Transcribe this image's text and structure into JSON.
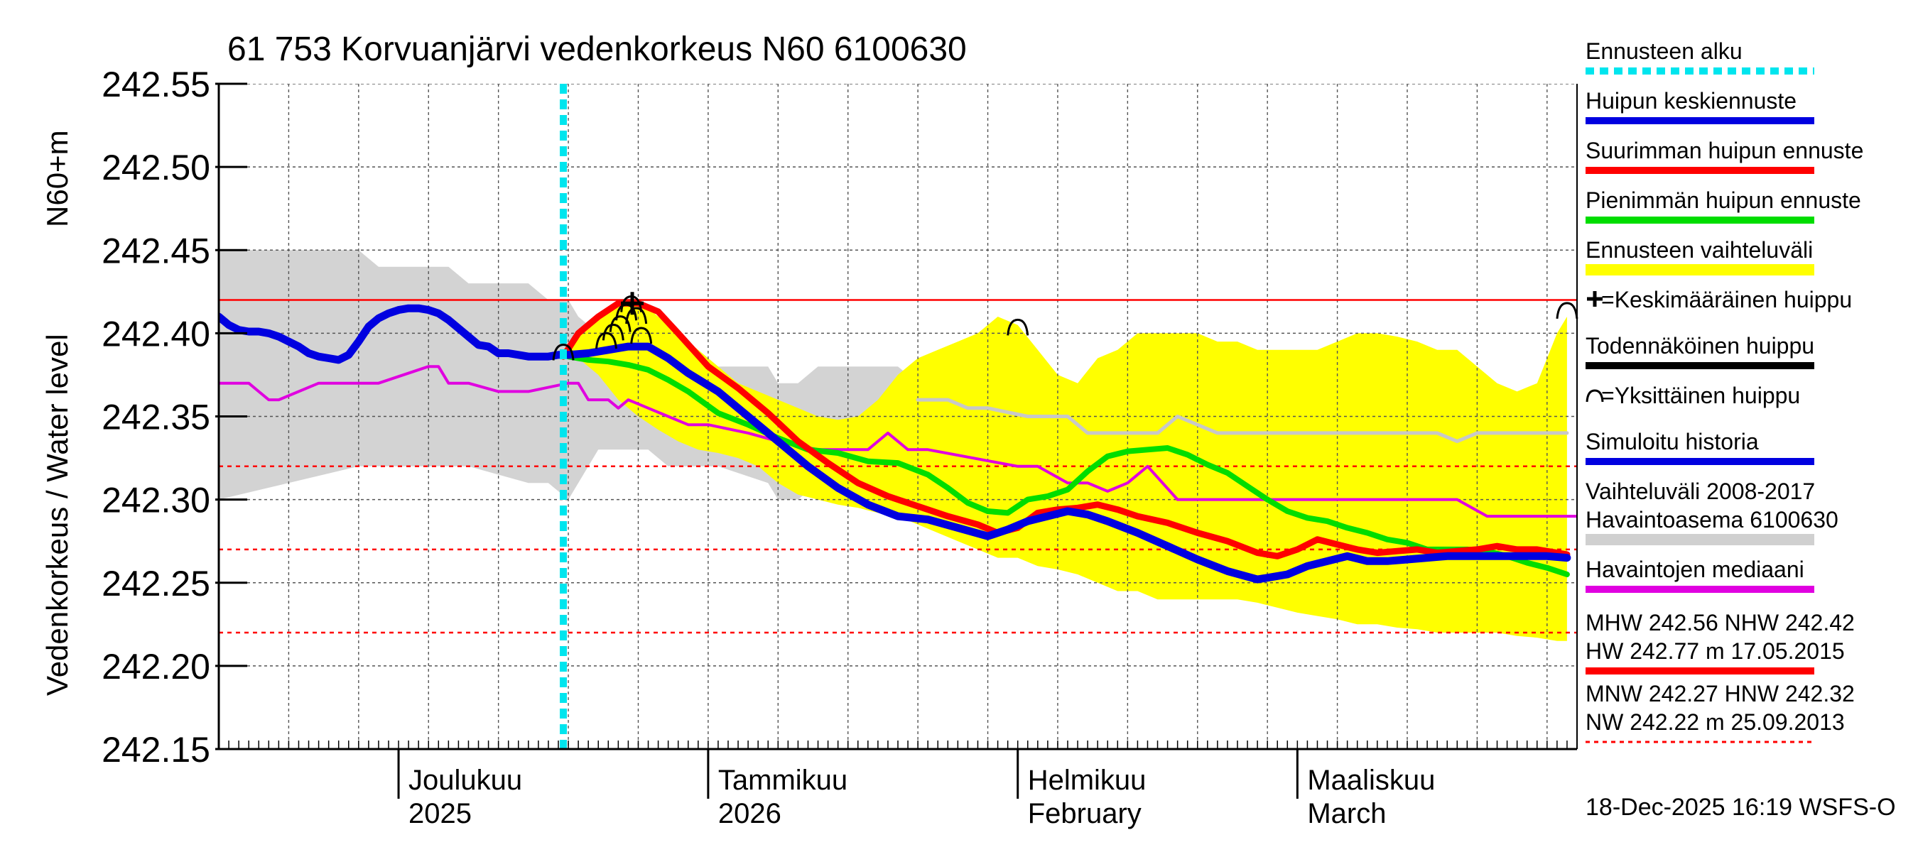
{
  "chart_data": {
    "type": "line",
    "title": "61 753 Korvuanjärvi vedenkorkeus N60 6100630",
    "ylabel": "Vedenkorkeus / Water level",
    "ylabel_unit": "N60+m",
    "ylim": [
      242.15,
      242.55
    ],
    "yticks": [
      "242.15",
      "242.20",
      "242.25",
      "242.30",
      "242.35",
      "242.40",
      "242.45",
      "242.50",
      "242.55"
    ],
    "x_unit": "days since 2025-11-13",
    "xlim": [
      0,
      136
    ],
    "month_labels": [
      {
        "line1": "Joulukuu",
        "line2": "2025",
        "day": 18
      },
      {
        "line1": "Tammikuu",
        "line2": "2026",
        "day": 49
      },
      {
        "line1": "Helmikuu",
        "line2": "February",
        "day": 80
      },
      {
        "line1": "Maaliskuu",
        "line2": "March",
        "day": 108
      }
    ],
    "month_boundaries": [
      18,
      49,
      80,
      108
    ],
    "forecast_start_day": 34.5,
    "reference_lines": [
      {
        "name": "NHW",
        "value": 242.42,
        "style": "solid"
      },
      {
        "name": "HNW",
        "value": 242.32,
        "style": "dashed"
      },
      {
        "name": "MNW",
        "value": 242.27,
        "style": "dashed"
      },
      {
        "name": "NW",
        "value": 242.22,
        "style": "dashed"
      }
    ],
    "history_band": {
      "name": "Vaihteluväli 2008-2017 Havaintoasema 6100630",
      "x": [
        0,
        14,
        16,
        23,
        25,
        31,
        33,
        35,
        36,
        38,
        43,
        45,
        48,
        50,
        55,
        56,
        58,
        60,
        64,
        65,
        68,
        70,
        76
      ],
      "upper": [
        242.45,
        242.45,
        242.44,
        242.44,
        242.43,
        242.43,
        242.42,
        242.42,
        242.41,
        242.4,
        242.4,
        242.39,
        242.39,
        242.38,
        242.38,
        242.37,
        242.37,
        242.38,
        242.38,
        242.38,
        242.38,
        242.37,
        242.37
      ],
      "lower": [
        242.3,
        242.32,
        242.32,
        242.32,
        242.32,
        242.31,
        242.31,
        242.3,
        242.31,
        242.33,
        242.33,
        242.32,
        242.32,
        242.32,
        242.31,
        242.3,
        242.3,
        242.31,
        242.31,
        242.3,
        242.3,
        242.31,
        242.3
      ]
    },
    "forecast_band": {
      "name": "Ennusteen vaihteluväli",
      "x": [
        34.5,
        36,
        38,
        40,
        42,
        44,
        46,
        48,
        50,
        52,
        54,
        56,
        58,
        60,
        62,
        64,
        66,
        68,
        70,
        72,
        74,
        76,
        78,
        80,
        82,
        84,
        86,
        88,
        90,
        92,
        94,
        96,
        98,
        100,
        102,
        104,
        106,
        108,
        110,
        112,
        114,
        116,
        118,
        120,
        122,
        124,
        126,
        128,
        130,
        132,
        134,
        135
      ],
      "upper": [
        242.39,
        242.4,
        242.41,
        242.42,
        242.42,
        242.41,
        242.4,
        242.39,
        242.38,
        242.37,
        242.365,
        242.36,
        242.355,
        242.35,
        242.348,
        242.35,
        242.36,
        242.375,
        242.385,
        242.39,
        242.395,
        242.4,
        242.41,
        242.405,
        242.39,
        242.375,
        242.37,
        242.385,
        242.39,
        242.4,
        242.4,
        242.4,
        242.4,
        242.395,
        242.395,
        242.39,
        242.39,
        242.39,
        242.39,
        242.395,
        242.4,
        242.4,
        242.398,
        242.395,
        242.39,
        242.39,
        242.38,
        242.37,
        242.365,
        242.37,
        242.4,
        242.41
      ],
      "lower": [
        242.385,
        242.385,
        242.375,
        242.36,
        242.35,
        242.342,
        242.335,
        242.33,
        242.328,
        242.325,
        242.32,
        242.31,
        242.303,
        242.3,
        242.297,
        242.295,
        242.292,
        242.29,
        242.285,
        242.28,
        242.275,
        242.27,
        242.265,
        242.265,
        242.26,
        242.258,
        242.255,
        242.25,
        242.245,
        242.245,
        242.24,
        242.24,
        242.24,
        242.24,
        242.24,
        242.238,
        242.235,
        242.232,
        242.23,
        242.228,
        242.225,
        242.225,
        242.223,
        242.222,
        242.22,
        242.22,
        242.22,
        242.22,
        242.218,
        242.217,
        242.215,
        242.215
      ]
    },
    "series": [
      {
        "name": "Simuloitu historia",
        "color": "#0000e0",
        "x": [
          0,
          1,
          2,
          3,
          4,
          5,
          6,
          7,
          8,
          9,
          10,
          11,
          12,
          13,
          14,
          15,
          16,
          17,
          18,
          19,
          20,
          21,
          22,
          23,
          24,
          25,
          26,
          27,
          28,
          29,
          30,
          31,
          32,
          33,
          34,
          35
        ],
        "values": [
          242.41,
          242.405,
          242.402,
          242.401,
          242.401,
          242.4,
          242.398,
          242.395,
          242.392,
          242.388,
          242.386,
          242.385,
          242.384,
          242.387,
          242.395,
          242.404,
          242.409,
          242.412,
          242.414,
          242.415,
          242.415,
          242.414,
          242.412,
          242.408,
          242.403,
          242.398,
          242.393,
          242.392,
          242.388,
          242.388,
          242.387,
          242.386,
          242.386,
          242.386,
          242.387,
          242.387
        ]
      },
      {
        "name": "Huipun keskiennuste",
        "color": "#0000e0",
        "x": [
          35,
          37,
          39,
          41,
          43,
          45,
          47,
          50,
          53,
          56,
          59,
          62,
          65,
          68,
          71,
          74,
          77,
          79,
          81,
          83,
          85,
          87,
          89,
          92,
          95,
          98,
          101,
          104,
          107,
          109,
          111,
          113,
          115,
          117,
          119,
          121,
          123,
          125,
          127,
          129,
          131,
          133,
          135
        ],
        "values": [
          242.387,
          242.388,
          242.39,
          242.392,
          242.392,
          242.385,
          242.376,
          242.365,
          242.35,
          242.335,
          242.32,
          242.307,
          242.297,
          242.29,
          242.288,
          242.283,
          242.278,
          242.282,
          242.287,
          242.29,
          242.293,
          242.291,
          242.287,
          242.28,
          242.272,
          242.264,
          242.257,
          242.252,
          242.255,
          242.26,
          242.263,
          242.266,
          242.263,
          242.263,
          242.264,
          242.265,
          242.266,
          242.266,
          242.266,
          242.266,
          242.266,
          242.266,
          242.265
        ]
      },
      {
        "name": "Suurimman huipun ennuste",
        "color": "#ff0000",
        "x": [
          34.5,
          36,
          38,
          40,
          42,
          44,
          46,
          49,
          52,
          55,
          58,
          61,
          64,
          67,
          70,
          73,
          76,
          78,
          80,
          82,
          84,
          86,
          88,
          90,
          92,
          95,
          98,
          101,
          104,
          106,
          108,
          110,
          112,
          114,
          116,
          118,
          120,
          122,
          124,
          126,
          128,
          130,
          132,
          135
        ],
        "values": [
          242.386,
          242.4,
          242.41,
          242.418,
          242.418,
          242.413,
          242.4,
          242.38,
          242.367,
          242.352,
          242.335,
          242.322,
          242.31,
          242.302,
          242.296,
          242.29,
          242.285,
          242.28,
          242.283,
          242.292,
          242.294,
          242.295,
          242.297,
          242.294,
          242.29,
          242.286,
          242.28,
          242.275,
          242.268,
          242.266,
          242.27,
          242.276,
          242.273,
          242.27,
          242.268,
          242.269,
          242.27,
          242.268,
          242.269,
          242.27,
          242.272,
          242.27,
          242.27,
          242.267
        ]
      },
      {
        "name": "Pienimmän huipun ennuste",
        "color": "#00dd00",
        "x": [
          35,
          37,
          39,
          41,
          43,
          45,
          47,
          50,
          53,
          56,
          59,
          62,
          65,
          68,
          71,
          73,
          75,
          77,
          79,
          81,
          83,
          85,
          87,
          89,
          91,
          93,
          95,
          97,
          99,
          101,
          103,
          105,
          107,
          109,
          111,
          113,
          115,
          117,
          119,
          121,
          123,
          125,
          127,
          129,
          131,
          133,
          135
        ],
        "values": [
          242.386,
          242.384,
          242.383,
          242.381,
          242.378,
          242.372,
          242.365,
          242.352,
          242.345,
          242.337,
          242.33,
          242.328,
          242.323,
          242.322,
          242.315,
          242.307,
          242.298,
          242.293,
          242.292,
          242.3,
          242.302,
          242.306,
          242.317,
          242.326,
          242.329,
          242.33,
          242.331,
          242.327,
          242.321,
          242.316,
          242.308,
          242.3,
          242.293,
          242.289,
          242.287,
          242.283,
          242.28,
          242.276,
          242.274,
          242.27,
          242.27,
          242.27,
          242.269,
          242.266,
          242.262,
          242.259,
          242.255
        ]
      },
      {
        "name": "Havaintojen mediaani",
        "color": "#e000e0",
        "x": [
          0,
          3,
          4,
          5,
          6,
          10,
          14,
          16,
          21,
          22,
          23,
          24,
          25,
          28,
          31,
          35,
          36,
          37,
          39,
          40,
          41,
          43,
          45,
          47,
          49,
          53,
          56,
          60,
          62,
          65,
          67,
          69,
          71,
          80,
          82,
          85,
          87,
          89,
          91,
          93,
          96,
          100,
          106,
          110,
          114,
          120,
          124,
          127,
          131,
          136
        ],
        "values": [
          242.37,
          242.37,
          242.365,
          242.36,
          242.36,
          242.37,
          242.37,
          242.37,
          242.38,
          242.38,
          242.37,
          242.37,
          242.37,
          242.365,
          242.365,
          242.37,
          242.37,
          242.36,
          242.36,
          242.355,
          242.36,
          242.355,
          242.35,
          242.345,
          242.345,
          242.34,
          242.335,
          242.33,
          242.33,
          242.33,
          242.34,
          242.33,
          242.33,
          242.32,
          242.32,
          242.31,
          242.31,
          242.305,
          242.31,
          242.32,
          242.3,
          242.3,
          242.3,
          242.3,
          242.3,
          242.3,
          242.3,
          242.29,
          242.29,
          242.29
        ]
      },
      {
        "name": "Havaintoasema 6100630",
        "color": "#c8c8c8",
        "x": [
          70,
          73,
          75,
          77,
          81,
          85,
          87,
          94,
          96,
          100,
          104,
          106,
          110,
          114,
          118,
          122,
          124,
          126,
          130,
          134,
          135
        ],
        "values": [
          242.36,
          242.36,
          242.355,
          242.355,
          242.35,
          242.35,
          242.34,
          242.34,
          242.35,
          242.34,
          242.34,
          242.34,
          242.34,
          242.34,
          242.34,
          242.34,
          242.335,
          242.34,
          242.34,
          242.34,
          242.34
        ]
      }
    ],
    "peak_markers": {
      "name": "Yksittäinen huippu",
      "points": [
        {
          "x": 34.5,
          "y": 242.388
        },
        {
          "x": 38.8,
          "y": 242.395
        },
        {
          "x": 39.5,
          "y": 242.4
        },
        {
          "x": 40.2,
          "y": 242.405
        },
        {
          "x": 40.8,
          "y": 242.412
        },
        {
          "x": 41.3,
          "y": 242.417
        },
        {
          "x": 41.8,
          "y": 242.41
        },
        {
          "x": 42.3,
          "y": 242.398
        },
        {
          "x": 80,
          "y": 242.403
        },
        {
          "x": 135,
          "y": 242.413
        }
      ]
    },
    "mean_peak_marker": {
      "name": "Keskimääräinen huippu",
      "x": 41.4,
      "y": 242.418
    },
    "legend": [
      {
        "label": "Ennusteen alku",
        "color": "#00e5ee",
        "style": "dotted"
      },
      {
        "label": "Huipun keskiennuste",
        "color": "#0000e0",
        "style": "solid"
      },
      {
        "label": "Suurimman huipun ennuste",
        "color": "#ff0000",
        "style": "solid"
      },
      {
        "label": "Pienimmän huipun ennuste",
        "color": "#00dd00",
        "style": "solid"
      },
      {
        "label": "Ennusteen vaihteluväli",
        "color": "#ffff00",
        "style": "band"
      },
      {
        "label": "=Keskimääräinen huippu",
        "color": "#000000",
        "style": "plus"
      },
      {
        "label": "Todennäköinen huippu",
        "color": "#000000",
        "style": "solid"
      },
      {
        "label": "=Yksittäinen huippu",
        "color": "#000000",
        "style": "arc"
      },
      {
        "label": "Simuloitu historia",
        "color": "#0000e0",
        "style": "solid"
      },
      {
        "label": "Vaihteluväli 2008-2017",
        "label2": "Havaintoasema 6100630",
        "color": "#d0d0d0",
        "style": "band"
      },
      {
        "label": "Havaintojen mediaani",
        "color": "#e000e0",
        "style": "solid"
      },
      {
        "label": "MHW 242.56 NHW 242.42",
        "label2": "HW 242.77 m 17.05.2015",
        "color": "#ff0000",
        "style": "solid"
      },
      {
        "label": "MNW 242.27 HNW 242.32",
        "label2": "NW 242.22 m 25.09.2013",
        "color": "#ff0000",
        "style": "dashed"
      }
    ],
    "footer": "18-Dec-2025 16:19 WSFS-O"
  }
}
